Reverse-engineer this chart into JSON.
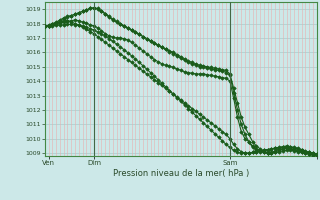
{
  "xlabel": "Pression niveau de la mer( hPa )",
  "ylim": [
    1008.8,
    1019.5
  ],
  "yticks": [
    1009,
    1010,
    1011,
    1012,
    1013,
    1014,
    1015,
    1016,
    1017,
    1018,
    1019
  ],
  "background_color": "#cce8e8",
  "grid_color_h": "#aacccc",
  "grid_color_v": "#e8b0b0",
  "line_color": "#1a5c1a",
  "vline_color": "#446644",
  "x_total_points": 73,
  "xtick_positions": [
    1,
    13,
    49,
    72
  ],
  "xtick_labels": [
    "Ven",
    "Dim",
    "Sam",
    ""
  ],
  "vlines": [
    13,
    49
  ],
  "series": [
    [
      1017.8,
      1017.85,
      1017.9,
      1018.0,
      1018.05,
      1018.1,
      1018.15,
      1018.2,
      1018.25,
      1018.2,
      1018.1,
      1018.05,
      1017.9,
      1017.85,
      1017.7,
      1017.5,
      1017.3,
      1017.15,
      1017.05,
      1017.0,
      1017.0,
      1016.95,
      1016.85,
      1016.7,
      1016.5,
      1016.3,
      1016.1,
      1015.9,
      1015.7,
      1015.5,
      1015.35,
      1015.2,
      1015.1,
      1015.05,
      1014.95,
      1014.85,
      1014.75,
      1014.65,
      1014.6,
      1014.55,
      1014.5,
      1014.5,
      1014.5,
      1014.45,
      1014.4,
      1014.35,
      1014.3,
      1014.25,
      1014.2,
      1014.0,
      1012.8,
      1011.5,
      1010.5,
      1010.0,
      1009.8,
      1009.5,
      1009.3,
      1009.2,
      1009.1,
      1009.0,
      1009.0,
      1009.05,
      1009.1,
      1009.15,
      1009.2,
      1009.2,
      1009.15,
      1009.1,
      1009.05,
      1009.0,
      1008.95,
      1008.9,
      1008.85
    ],
    [
      1017.8,
      1017.9,
      1018.0,
      1018.1,
      1018.25,
      1018.4,
      1018.5,
      1018.55,
      1018.65,
      1018.75,
      1018.85,
      1018.95,
      1019.05,
      1019.1,
      1019.0,
      1018.85,
      1018.65,
      1018.45,
      1018.25,
      1018.1,
      1017.95,
      1017.8,
      1017.7,
      1017.55,
      1017.4,
      1017.25,
      1017.1,
      1016.95,
      1016.8,
      1016.65,
      1016.5,
      1016.35,
      1016.2,
      1016.1,
      1016.0,
      1015.85,
      1015.7,
      1015.55,
      1015.4,
      1015.3,
      1015.2,
      1015.1,
      1015.05,
      1015.0,
      1014.95,
      1014.9,
      1014.85,
      1014.8,
      1014.75,
      1014.5,
      1013.5,
      1012.5,
      1011.5,
      1010.8,
      1010.3,
      1009.8,
      1009.5,
      1009.3,
      1009.15,
      1009.0,
      1009.0,
      1009.1,
      1009.2,
      1009.3,
      1009.35,
      1009.3,
      1009.25,
      1009.2,
      1009.15,
      1009.1,
      1009.05,
      1009.0,
      1008.95
    ],
    [
      1017.8,
      1017.85,
      1017.95,
      1018.05,
      1018.15,
      1018.3,
      1018.45,
      1018.55,
      1018.65,
      1018.75,
      1018.85,
      1018.95,
      1019.05,
      1019.1,
      1019.05,
      1018.9,
      1018.7,
      1018.5,
      1018.3,
      1018.15,
      1018.0,
      1017.85,
      1017.7,
      1017.55,
      1017.4,
      1017.25,
      1017.1,
      1016.95,
      1016.8,
      1016.65,
      1016.5,
      1016.35,
      1016.2,
      1016.05,
      1015.9,
      1015.75,
      1015.6,
      1015.45,
      1015.3,
      1015.2,
      1015.1,
      1015.0,
      1014.95,
      1014.9,
      1014.85,
      1014.8,
      1014.75,
      1014.7,
      1014.6,
      1014.4,
      1013.2,
      1012.0,
      1011.0,
      1010.3,
      1009.8,
      1009.4,
      1009.2,
      1009.1,
      1009.05,
      1009.0,
      1009.05,
      1009.15,
      1009.3,
      1009.45,
      1009.5,
      1009.45,
      1009.4,
      1009.35,
      1009.25,
      1009.15,
      1009.05,
      1009.0,
      1008.95
    ],
    [
      1017.8,
      1017.85,
      1017.9,
      1018.0,
      1018.1,
      1018.15,
      1018.2,
      1018.1,
      1018.0,
      1017.9,
      1017.75,
      1017.6,
      1017.45,
      1017.3,
      1017.1,
      1016.9,
      1016.7,
      1016.5,
      1016.3,
      1016.1,
      1015.9,
      1015.7,
      1015.5,
      1015.3,
      1015.1,
      1014.9,
      1014.7,
      1014.5,
      1014.3,
      1014.1,
      1013.9,
      1013.7,
      1013.5,
      1013.3,
      1013.1,
      1012.9,
      1012.7,
      1012.5,
      1012.3,
      1012.1,
      1011.9,
      1011.7,
      1011.5,
      1011.3,
      1011.1,
      1010.9,
      1010.7,
      1010.5,
      1010.3,
      1010.0,
      1009.6,
      1009.3,
      1009.1,
      1009.0,
      1009.0,
      1009.05,
      1009.1,
      1009.15,
      1009.2,
      1009.25,
      1009.3,
      1009.35,
      1009.4,
      1009.45,
      1009.45,
      1009.4,
      1009.35,
      1009.3,
      1009.2,
      1009.1,
      1009.0,
      1008.95,
      1008.9
    ],
    [
      1017.8,
      1017.82,
      1017.85,
      1017.88,
      1017.9,
      1017.92,
      1017.94,
      1017.95,
      1017.93,
      1017.88,
      1017.82,
      1017.75,
      1017.65,
      1017.55,
      1017.42,
      1017.28,
      1017.12,
      1016.95,
      1016.77,
      1016.58,
      1016.38,
      1016.18,
      1015.97,
      1015.75,
      1015.53,
      1015.3,
      1015.07,
      1014.83,
      1014.59,
      1014.35,
      1014.1,
      1013.85,
      1013.6,
      1013.35,
      1013.1,
      1012.85,
      1012.6,
      1012.35,
      1012.1,
      1011.85,
      1011.6,
      1011.35,
      1011.1,
      1010.85,
      1010.6,
      1010.35,
      1010.1,
      1009.85,
      1009.6,
      1009.4,
      1009.2,
      1009.05,
      1009.0,
      1009.0,
      1009.0,
      1009.05,
      1009.1,
      1009.15,
      1009.2,
      1009.25,
      1009.3,
      1009.35,
      1009.38,
      1009.38,
      1009.35,
      1009.3,
      1009.25,
      1009.18,
      1009.1,
      1009.02,
      1008.95,
      1008.9,
      1008.85
    ]
  ]
}
